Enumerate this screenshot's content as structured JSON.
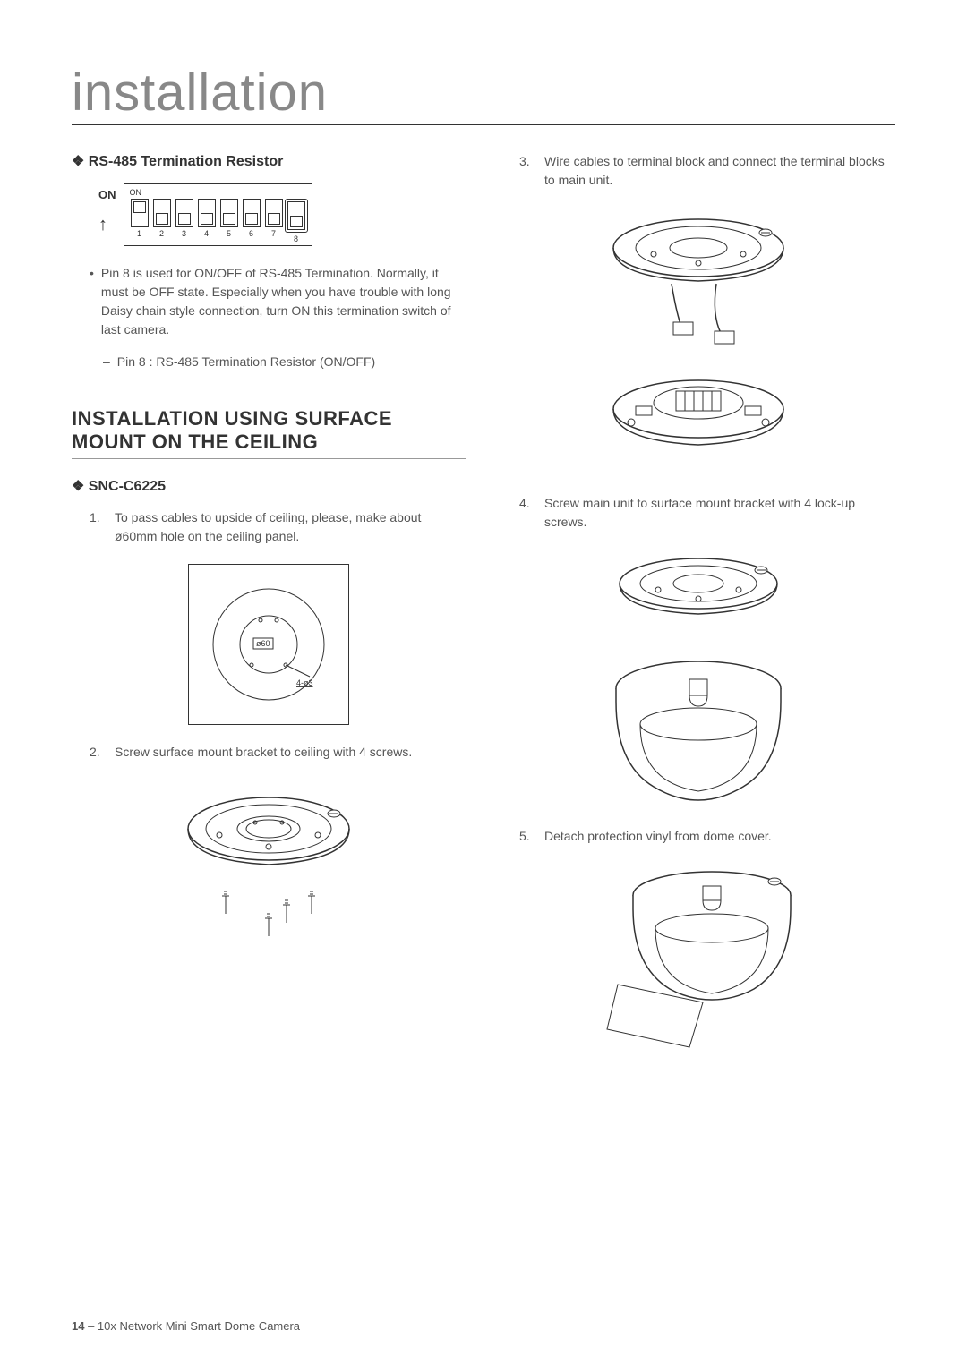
{
  "page": {
    "title": "installation",
    "footer_page": "14",
    "footer_text": " – 10x Network Mini Smart Dome Camera"
  },
  "rs485": {
    "heading": "❖ RS-485 Termination Resistor",
    "on_label": "ON",
    "switches": [
      {
        "num": "1",
        "pos": "up"
      },
      {
        "num": "2",
        "pos": "down"
      },
      {
        "num": "3",
        "pos": "down"
      },
      {
        "num": "4",
        "pos": "down"
      },
      {
        "num": "5",
        "pos": "down"
      },
      {
        "num": "6",
        "pos": "down"
      },
      {
        "num": "7",
        "pos": "down"
      },
      {
        "num": "8",
        "pos": "down"
      }
    ],
    "pin8_text": "Pin 8 is used for ON/OFF of RS-485 Termination. Normally, it must be OFF state. Especially when you have trouble with long Daisy chain style connection, turn ON this termination switch of last camera.",
    "pin8_dash": "Pin 8 : RS-485 Termination Resistor (ON/OFF)"
  },
  "surface_mount": {
    "heading": "INSTALLATION USING SURFACE MOUNT ON THE CEILING",
    "model": "❖ SNC-C6225",
    "step1_num": "1.",
    "step1": "To pass cables to upside of ceiling, please, make about ø60mm hole on the ceiling panel.",
    "hole_label": "ø60",
    "hole_small": "4-ø3",
    "step2_num": "2.",
    "step2": "Screw surface mount bracket to ceiling with 4 screws.",
    "step3_num": "3.",
    "step3": "Wire cables to terminal block and connect the terminal blocks to main unit.",
    "step4_num": "4.",
    "step4": "Screw main unit to surface mount bracket with 4 lock-up screws.",
    "step5_num": "5.",
    "step5": "Detach protection vinyl from dome cover."
  }
}
